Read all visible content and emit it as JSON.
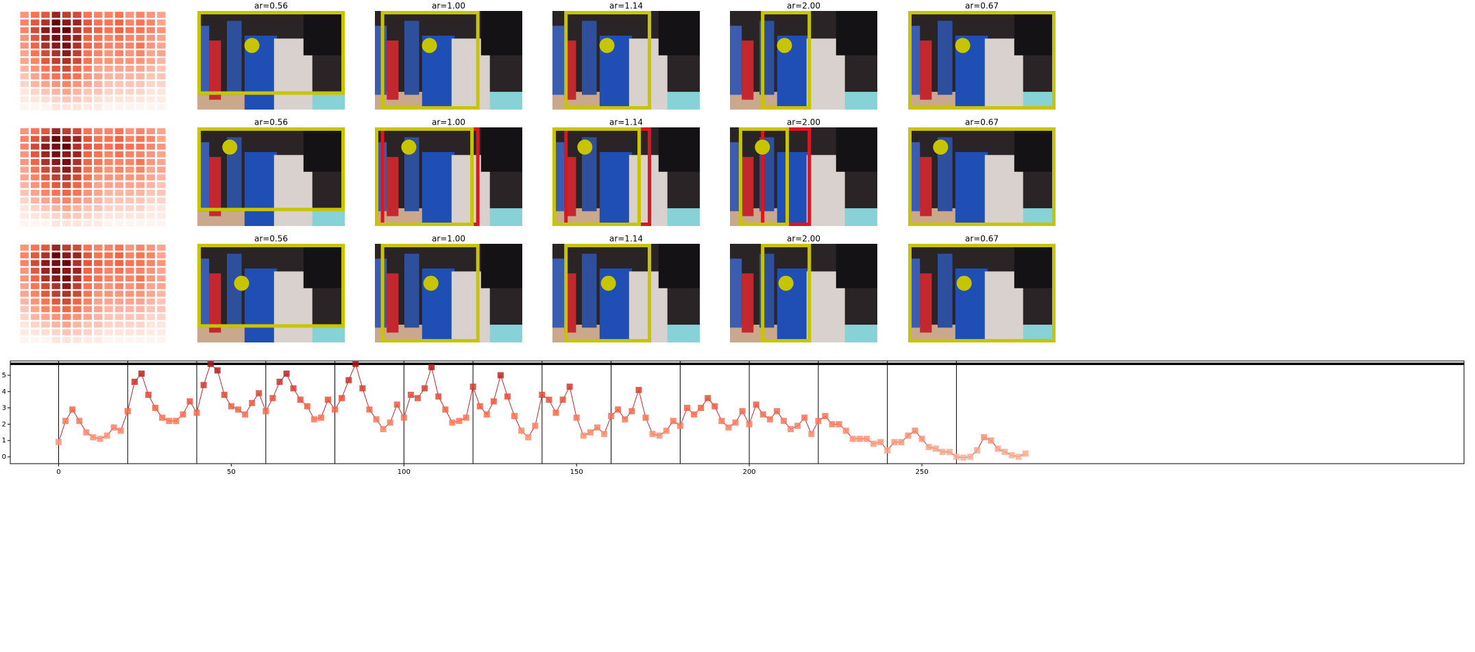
{
  "panel_titles": [
    "ar=0.56",
    "ar=1.00",
    "ar=1.14",
    "ar=2.00",
    "ar=0.67"
  ],
  "chart_data": [
    {
      "type": "heatmap",
      "colormap": [
        "#fff5f0",
        "#fb6a4a",
        "#67000d"
      ],
      "values": [
        [
          0.35,
          0.45,
          0.55,
          0.75,
          0.65,
          0.6,
          0.45,
          0.4,
          0.4,
          0.45,
          0.35,
          0.4,
          0.35,
          0.3
        ],
        [
          0.4,
          0.55,
          0.7,
          0.9,
          0.8,
          0.75,
          0.55,
          0.45,
          0.45,
          0.5,
          0.4,
          0.45,
          0.4,
          0.3
        ],
        [
          0.4,
          0.6,
          0.8,
          0.85,
          0.9,
          0.7,
          0.55,
          0.5,
          0.45,
          0.5,
          0.45,
          0.45,
          0.4,
          0.35
        ],
        [
          0.35,
          0.55,
          0.75,
          0.85,
          0.8,
          0.75,
          0.5,
          0.45,
          0.4,
          0.45,
          0.4,
          0.4,
          0.35,
          0.3
        ],
        [
          0.35,
          0.5,
          0.7,
          0.8,
          0.85,
          0.7,
          0.5,
          0.45,
          0.4,
          0.4,
          0.4,
          0.45,
          0.35,
          0.3
        ],
        [
          0.3,
          0.45,
          0.6,
          0.7,
          0.8,
          0.65,
          0.45,
          0.4,
          0.35,
          0.4,
          0.35,
          0.4,
          0.3,
          0.3
        ],
        [
          0.3,
          0.4,
          0.55,
          0.65,
          0.7,
          0.6,
          0.45,
          0.35,
          0.35,
          0.35,
          0.35,
          0.35,
          0.3,
          0.25
        ],
        [
          0.25,
          0.35,
          0.45,
          0.55,
          0.6,
          0.5,
          0.4,
          0.3,
          0.3,
          0.3,
          0.3,
          0.3,
          0.25,
          0.2
        ],
        [
          0.2,
          0.3,
          0.4,
          0.45,
          0.5,
          0.45,
          0.35,
          0.3,
          0.25,
          0.25,
          0.25,
          0.25,
          0.2,
          0.2
        ],
        [
          0.15,
          0.25,
          0.3,
          0.35,
          0.4,
          0.35,
          0.3,
          0.25,
          0.2,
          0.2,
          0.2,
          0.2,
          0.15,
          0.15
        ],
        [
          0.1,
          0.15,
          0.2,
          0.25,
          0.3,
          0.25,
          0.2,
          0.2,
          0.15,
          0.15,
          0.15,
          0.15,
          0.1,
          0.1
        ],
        [
          0.08,
          0.1,
          0.12,
          0.15,
          0.2,
          0.18,
          0.15,
          0.12,
          0.1,
          0.1,
          0.1,
          0.1,
          0.08,
          0.08
        ],
        [
          0.05,
          0.05,
          0.05,
          0.1,
          0.1,
          0.1,
          0.08,
          0.08,
          0.05,
          0.05,
          0.05,
          0.05,
          0.05,
          0.05
        ]
      ]
    },
    {
      "type": "line",
      "color": "#c0282d",
      "colormap": [
        "#fcbba1",
        "#fb6a4a",
        "#a50f15"
      ],
      "xlim": [
        -14,
        407
      ],
      "ylim": [
        -0.42,
        5.88
      ],
      "xticks": [
        0,
        50,
        100,
        150,
        200,
        250
      ],
      "yticks": [
        0,
        1,
        2,
        3,
        4,
        5
      ],
      "vlines": [
        0,
        20,
        40,
        60,
        80,
        100,
        120,
        140,
        160,
        180,
        200,
        220,
        240,
        260
      ],
      "hlines": [
        5.7
      ],
      "x": [
        0,
        2,
        4,
        6,
        8,
        10,
        12,
        14,
        16,
        18,
        20,
        22,
        24,
        26,
        28,
        30,
        32,
        34,
        36,
        38,
        40,
        42,
        44,
        46,
        48,
        50,
        52,
        54,
        56,
        58,
        60,
        62,
        64,
        66,
        68,
        70,
        72,
        74,
        76,
        78,
        80,
        82,
        84,
        86,
        88,
        90,
        92,
        94,
        96,
        98,
        100,
        102,
        104,
        106,
        108,
        110,
        112,
        114,
        116,
        118,
        120,
        122,
        124,
        126,
        128,
        130,
        132,
        134,
        136,
        138,
        140,
        142,
        144,
        146,
        148,
        150,
        152,
        154,
        156,
        158,
        160,
        162,
        164,
        166,
        168,
        170,
        172,
        174,
        176,
        178,
        180,
        182,
        184,
        186,
        188,
        190,
        192,
        194,
        196,
        198,
        200,
        202,
        204,
        206,
        208,
        210,
        212,
        214,
        216,
        218,
        220,
        222,
        224,
        226,
        228,
        230,
        232,
        234,
        236,
        238,
        240,
        242,
        244,
        246,
        248,
        250,
        252,
        254,
        256,
        258,
        260,
        262,
        264,
        266,
        268,
        270,
        272,
        274,
        276,
        278,
        280
      ],
      "values": [
        0.9,
        2.2,
        2.9,
        2.2,
        1.5,
        1.2,
        1.1,
        1.3,
        1.8,
        1.6,
        2.8,
        4.6,
        5.1,
        3.8,
        3.0,
        2.4,
        2.2,
        2.2,
        2.6,
        3.4,
        2.7,
        4.4,
        5.7,
        5.3,
        3.8,
        3.1,
        2.9,
        2.6,
        3.3,
        3.9,
        2.8,
        3.6,
        4.6,
        5.1,
        4.2,
        3.5,
        3.1,
        2.3,
        2.4,
        3.5,
        2.9,
        3.6,
        4.7,
        5.7,
        4.2,
        2.9,
        2.3,
        1.7,
        2.1,
        3.2,
        2.4,
        3.8,
        3.6,
        4.2,
        5.5,
        3.7,
        2.9,
        2.1,
        2.2,
        2.4,
        4.3,
        3.1,
        2.6,
        3.4,
        5.0,
        3.7,
        2.5,
        1.6,
        1.2,
        1.9,
        3.8,
        3.5,
        2.7,
        3.5,
        4.3,
        2.4,
        1.3,
        1.5,
        1.8,
        1.4,
        2.5,
        2.9,
        2.3,
        2.8,
        4.1,
        2.4,
        1.4,
        1.3,
        1.6,
        2.2,
        1.9,
        3.0,
        2.6,
        3.0,
        3.6,
        3.1,
        2.2,
        1.8,
        2.1,
        2.8,
        2.0,
        3.2,
        2.6,
        2.3,
        2.8,
        2.2,
        1.7,
        1.9,
        2.4,
        1.4,
        2.2,
        2.5,
        2.0,
        2.0,
        1.6,
        1.1,
        1.1,
        1.1,
        0.8,
        0.9,
        0.4,
        0.9,
        0.9,
        1.3,
        1.6,
        1.1,
        0.6,
        0.5,
        0.3,
        0.3,
        0.0,
        -0.05,
        0.0,
        0.4,
        1.2,
        1.0,
        0.5,
        0.3,
        0.1,
        0.0,
        0.2
      ]
    }
  ]
}
